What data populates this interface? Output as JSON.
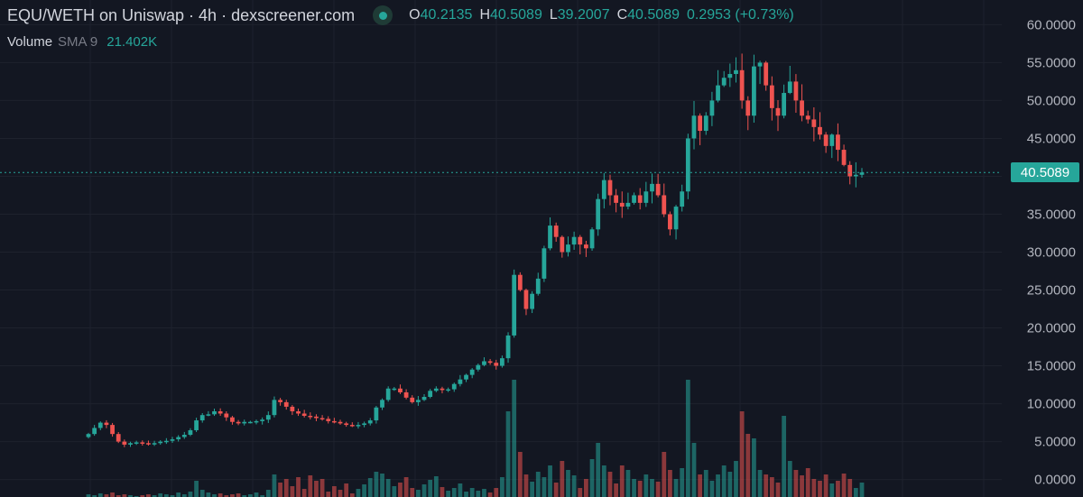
{
  "header": {
    "title": "EQU/WETH on Uniswap · 4h · dexscreener.com",
    "ohlc": [
      {
        "key": "O",
        "value": "40.2135"
      },
      {
        "key": "H",
        "value": "40.5089"
      },
      {
        "key": "L",
        "value": "39.2007"
      },
      {
        "key": "C",
        "value": "40.5089"
      }
    ],
    "change": "0.2953 (+0.73%)"
  },
  "volume": {
    "label": "Volume",
    "sma": "SMA 9",
    "value": "21.402K"
  },
  "last_price": "40.5089",
  "colors": {
    "up": "#26a69a",
    "down": "#ef5350",
    "background": "#131722",
    "grid": "#1e222d"
  },
  "chart_data": {
    "type": "candlestick",
    "y_ticks": [
      "0.0000",
      "5.0000",
      "10.0000",
      "15.0000",
      "20.0000",
      "25.0000",
      "30.0000",
      "35.0000",
      "40.0000",
      "45.0000",
      "50.0000",
      "55.0000",
      "60.0000"
    ],
    "ylim": [
      -1,
      61
    ],
    "close": [
      6.0,
      6.8,
      7.5,
      7.2,
      6.0,
      5.0,
      4.6,
      4.8,
      4.9,
      4.8,
      4.7,
      4.8,
      5.0,
      5.1,
      5.3,
      5.6,
      5.9,
      6.5,
      7.8,
      8.5,
      8.6,
      9.0,
      8.7,
      8.2,
      7.6,
      7.4,
      7.6,
      7.6,
      7.7,
      7.9,
      8.5,
      10.5,
      10.2,
      9.6,
      9.0,
      8.7,
      8.4,
      8.3,
      8.1,
      8.0,
      7.7,
      7.6,
      7.4,
      7.2,
      7.1,
      7.2,
      7.4,
      7.8,
      9.5,
      10.5,
      12.0,
      12.0,
      11.5,
      10.8,
      10.2,
      10.5,
      10.9,
      11.7,
      12.0,
      11.8,
      11.9,
      12.6,
      13.2,
      13.8,
      14.5,
      15.1,
      15.6,
      15.4,
      15.0,
      16.0,
      19.0,
      27.0,
      25.0,
      22.5,
      24.5,
      26.5,
      30.5,
      33.5,
      32.0,
      30.0,
      31.0,
      32.0,
      31.0,
      30.5,
      33.0,
      37.0,
      39.5,
      37.5,
      36.5,
      36.0,
      36.5,
      37.5,
      36.5,
      38.0,
      39.0,
      37.5,
      35.0,
      33.0,
      36.0,
      38.0,
      45.0,
      48.0,
      46.0,
      48.0,
      50.0,
      52.0,
      53.0,
      53.5,
      54.0,
      50.0,
      48.0,
      54.5,
      55.0,
      52.0,
      49.0,
      48.0,
      51.0,
      52.5,
      50.0,
      48.0,
      47.5,
      46.5,
      45.5,
      44.0,
      45.5,
      43.5,
      41.5,
      40.0,
      40.2,
      40.5089
    ],
    "volume": [
      0.3,
      0.2,
      0.4,
      0.3,
      0.5,
      0.2,
      0.3,
      0.2,
      0.1,
      0.2,
      0.3,
      0.2,
      0.4,
      0.3,
      0.2,
      0.5,
      0.3,
      0.6,
      1.8,
      0.8,
      0.5,
      0.3,
      0.4,
      0.2,
      0.3,
      0.4,
      0.2,
      0.3,
      0.5,
      0.2,
      0.8,
      2.5,
      1.6,
      2.0,
      1.2,
      2.2,
      0.9,
      2.4,
      1.8,
      2.0,
      0.6,
      1.2,
      0.8,
      1.5,
      0.4,
      0.9,
      1.4,
      2.1,
      2.8,
      2.6,
      2.0,
      1.2,
      1.6,
      2.2,
      1.0,
      0.8,
      1.4,
      1.9,
      2.3,
      1.1,
      0.7,
      1.0,
      1.5,
      0.6,
      1.0,
      0.7,
      0.9,
      0.5,
      1.0,
      2.2,
      9.5,
      13.0,
      5.0,
      2.5,
      1.7,
      2.8,
      2.2,
      3.5,
      1.6,
      4.0,
      3.0,
      2.4,
      1.0,
      2.0,
      4.2,
      6.0,
      3.5,
      2.8,
      1.5,
      3.5,
      3.0,
      2.0,
      1.8,
      2.5,
      2.0,
      1.7,
      5.0,
      3.0,
      2.0,
      3.2,
      13.0,
      6.0,
      2.5,
      3.0,
      1.8,
      2.5,
      3.5,
      2.8,
      4.0,
      9.5,
      7.0,
      6.5,
      3.0,
      2.5,
      2.2,
      1.6,
      9.0,
      4.0,
      3.0,
      2.4,
      3.2,
      2.0,
      1.8,
      2.5,
      1.5,
      1.8,
      2.6,
      2.0,
      1.0,
      1.6
    ]
  }
}
